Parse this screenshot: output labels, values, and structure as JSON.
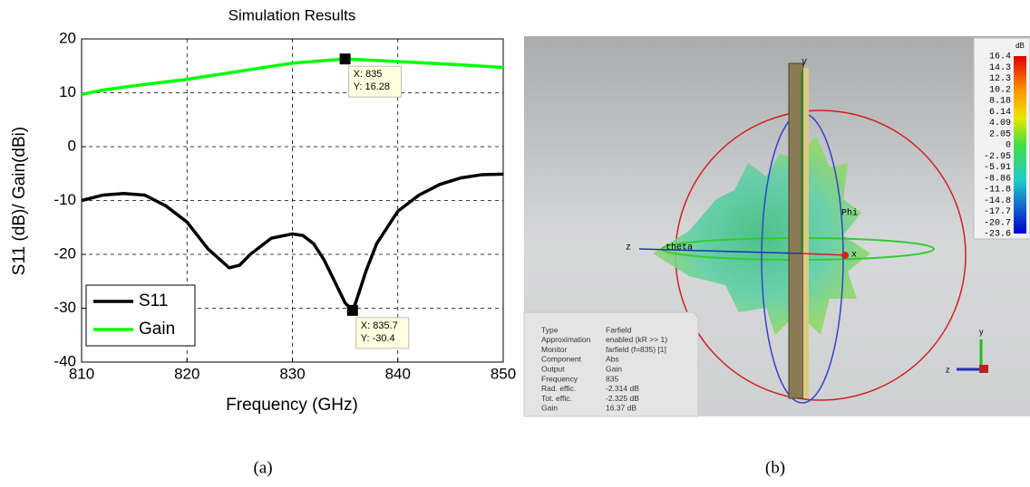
{
  "chart_data": {
    "type": "line",
    "title": "Simulation Results",
    "xlabel": "Frequency (GHz)",
    "ylabel": "S11 (dB)/ Gain(dBi)",
    "xlim": [
      810,
      850
    ],
    "xticks": [
      810,
      820,
      830,
      840,
      850
    ],
    "ylim": [
      -40,
      20
    ],
    "yticks": [
      -40,
      -30,
      -20,
      -10,
      0,
      10,
      20
    ],
    "grid": true,
    "legend": "lower left",
    "series": [
      {
        "name": "S11",
        "color": "#000000",
        "x": [
          810,
          812,
          814,
          816,
          818,
          820,
          822,
          824,
          825,
          826,
          828,
          830,
          831,
          832,
          833,
          834,
          835,
          835.7,
          836,
          837,
          838,
          840,
          842,
          844,
          846,
          848,
          850
        ],
        "values": [
          -10,
          -9,
          -8.7,
          -9,
          -11,
          -14,
          -19,
          -22.5,
          -22,
          -20,
          -17,
          -16.2,
          -16.5,
          -18,
          -21,
          -25,
          -29,
          -30.4,
          -29,
          -23,
          -18,
          -12,
          -9,
          -7,
          -5.8,
          -5.2,
          -5.1
        ]
      },
      {
        "name": "Gain",
        "color": "#00ff00",
        "x": [
          810,
          812,
          815,
          820,
          825,
          830,
          835,
          840,
          845,
          850
        ],
        "values": [
          9.7,
          10.5,
          11.3,
          12.5,
          14,
          15.5,
          16.28,
          15.8,
          15.3,
          14.7
        ]
      }
    ],
    "annotations": [
      {
        "x": 835,
        "y": 16.28,
        "labels": [
          "X: 835",
          "Y: 16.28"
        ]
      },
      {
        "x": 835.7,
        "y": -30.4,
        "labels": [
          "X: 835.7",
          "Y: -30.4"
        ]
      }
    ]
  },
  "farfield": {
    "colorbar": {
      "unit": "dB",
      "labels": [
        "16.4",
        "14.3",
        "12.3",
        "10.2",
        "8.18",
        "6.14",
        "4.09",
        "2.05",
        "0",
        "-2.95",
        "-5.91",
        "-8.86",
        "-11.8",
        "-14.8",
        "-17.7",
        "-20.7",
        "-23.6"
      ]
    },
    "axes": {
      "y": "y",
      "z": "z",
      "theta": "theta",
      "phi": "Phi",
      "x": "x"
    },
    "info": [
      [
        "Type",
        "Farfield"
      ],
      [
        "Approximation",
        "enabled (kR >> 1)"
      ],
      [
        "Monitor",
        "farfield (f=835) [1]"
      ],
      [
        "Component",
        "Abs"
      ],
      [
        "Output",
        "Gain"
      ],
      [
        "Frequency",
        "835"
      ],
      [
        "Rad. effic.",
        "-2.314 dB"
      ],
      [
        "Tot. effic.",
        "-2.325 dB"
      ],
      [
        "Gain",
        "16.37 dB"
      ]
    ]
  },
  "captions": [
    "(a)",
    "(b)"
  ]
}
